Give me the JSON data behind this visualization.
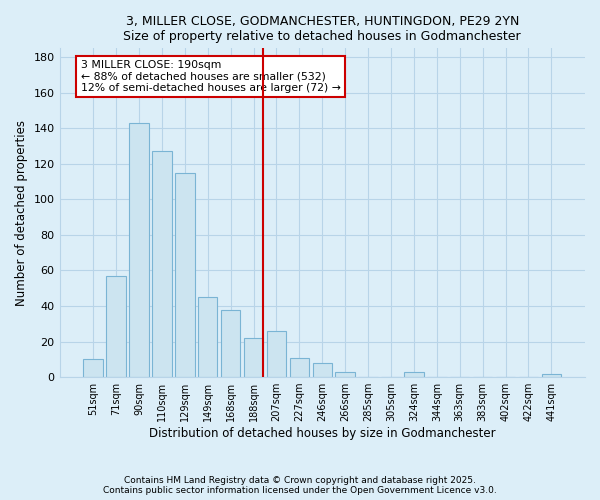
{
  "title1": "3, MILLER CLOSE, GODMANCHESTER, HUNTINGDON, PE29 2YN",
  "title2": "Size of property relative to detached houses in Godmanchester",
  "xlabel": "Distribution of detached houses by size in Godmanchester",
  "ylabel": "Number of detached properties",
  "bar_labels": [
    "51sqm",
    "71sqm",
    "90sqm",
    "110sqm",
    "129sqm",
    "149sqm",
    "168sqm",
    "188sqm",
    "207sqm",
    "227sqm",
    "246sqm",
    "266sqm",
    "285sqm",
    "305sqm",
    "324sqm",
    "344sqm",
    "363sqm",
    "383sqm",
    "402sqm",
    "422sqm",
    "441sqm"
  ],
  "bar_values": [
    10,
    57,
    143,
    127,
    115,
    45,
    38,
    22,
    26,
    11,
    8,
    3,
    0,
    0,
    3,
    0,
    0,
    0,
    0,
    0,
    2
  ],
  "bar_color": "#cce4f0",
  "bar_edge_color": "#7ab4d4",
  "vline_color": "#cc0000",
  "annotation_title": "3 MILLER CLOSE: 190sqm",
  "annotation_line1": "← 88% of detached houses are smaller (532)",
  "annotation_line2": "12% of semi-detached houses are larger (72) →",
  "annotation_box_color": "white",
  "annotation_box_edge": "#cc0000",
  "ylim": [
    0,
    185
  ],
  "yticks": [
    0,
    20,
    40,
    60,
    80,
    100,
    120,
    140,
    160,
    180
  ],
  "footer1": "Contains HM Land Registry data © Crown copyright and database right 2025.",
  "footer2": "Contains public sector information licensed under the Open Government Licence v3.0.",
  "bg_color": "#dceef8",
  "plot_bg_color": "#dceef8",
  "grid_color": "#b8d4e8"
}
